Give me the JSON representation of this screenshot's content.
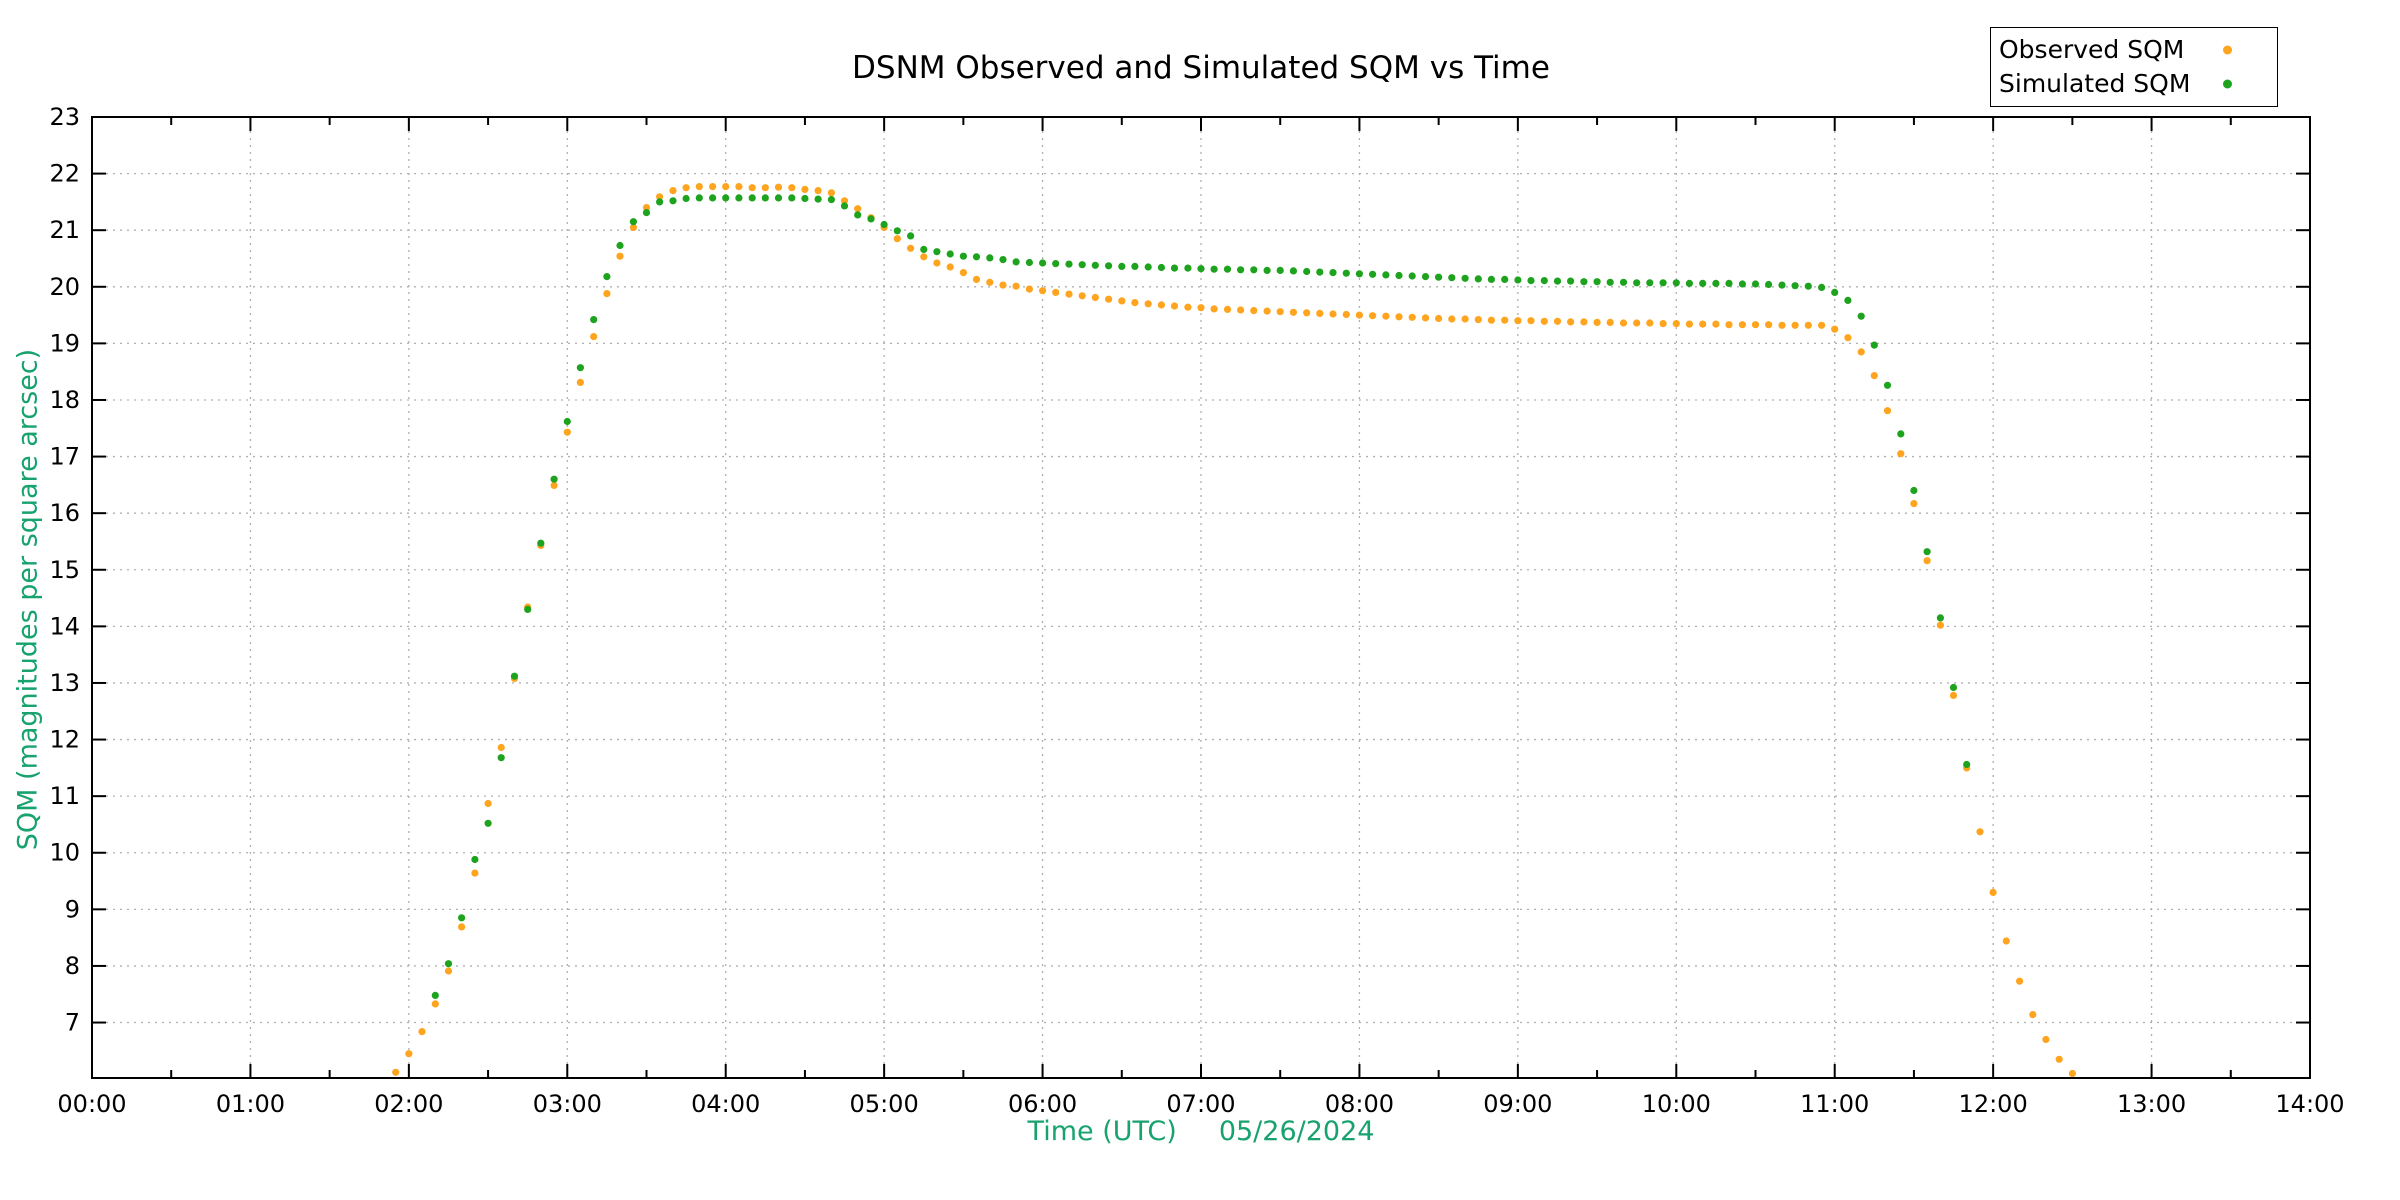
{
  "chart": {
    "title": "DSNM Observed and Simulated SQM vs Time",
    "x_axis": {
      "label": "Time (UTC)",
      "date": "05/26/2024",
      "tick_labels": [
        "00:00",
        "01:00",
        "02:00",
        "03:00",
        "04:00",
        "05:00",
        "06:00",
        "07:00",
        "08:00",
        "09:00",
        "10:00",
        "11:00",
        "12:00",
        "13:00",
        "14:00"
      ],
      "minor_tick_interval_minutes": 30
    },
    "y_axis": {
      "label": "SQM (magnitudes per square arcsec)",
      "tick_labels": [
        "7",
        "8",
        "9",
        "10",
        "11",
        "12",
        "13",
        "14",
        "15",
        "16",
        "17",
        "18",
        "19",
        "20",
        "21",
        "22",
        "23"
      ]
    },
    "legend": [
      {
        "label": "Observed SQM",
        "color": "#ffa41e"
      },
      {
        "label": "Simulated SQM",
        "color": "#1ea31e"
      }
    ],
    "colors": {
      "axis_title": "#17a26e",
      "grid": "#b0b0b0",
      "border": "#000000",
      "background": "#ffffff",
      "tick_text": "#000000"
    }
  },
  "chart_data": {
    "type": "scatter",
    "title": "DSNM Observed and Simulated SQM vs Time",
    "xlabel": "Time (UTC)   05/26/2024",
    "ylabel": "SQM (magnitudes per square arcsec)",
    "x_unit": "decimal_hours_utc",
    "xlim": [
      0,
      14
    ],
    "ylim": [
      6.02,
      23.0
    ],
    "x_major_tick_hours": 1,
    "x_minor_tick_hours": 0.5,
    "y_major_tick": 1,
    "grid": true,
    "grid_style": "dotted",
    "legend_position": "top-right-above-plot",
    "marker": "filled-circle",
    "series": [
      {
        "name": "Observed SQM",
        "color": "#ffa41e",
        "points": [
          [
            1.917,
            6.12
          ],
          [
            2.0,
            6.45
          ],
          [
            2.083,
            6.84
          ],
          [
            2.167,
            7.33
          ],
          [
            2.25,
            7.91
          ],
          [
            2.333,
            8.69
          ],
          [
            2.417,
            9.64
          ],
          [
            2.5,
            10.87
          ],
          [
            2.583,
            11.86
          ],
          [
            2.667,
            13.08
          ],
          [
            2.75,
            14.34
          ],
          [
            2.833,
            15.43
          ],
          [
            2.917,
            16.49
          ],
          [
            3.0,
            17.43
          ],
          [
            3.083,
            18.31
          ],
          [
            3.167,
            19.12
          ],
          [
            3.25,
            19.88
          ],
          [
            3.333,
            20.54
          ],
          [
            3.417,
            21.05
          ],
          [
            3.5,
            21.4
          ],
          [
            3.583,
            21.59
          ],
          [
            3.667,
            21.7
          ],
          [
            3.75,
            21.75
          ],
          [
            3.833,
            21.77
          ],
          [
            3.917,
            21.77
          ],
          [
            4.0,
            21.77
          ],
          [
            4.083,
            21.77
          ],
          [
            4.167,
            21.75
          ],
          [
            4.25,
            21.75
          ],
          [
            4.333,
            21.76
          ],
          [
            4.417,
            21.75
          ],
          [
            4.5,
            21.72
          ],
          [
            4.583,
            21.7
          ],
          [
            4.667,
            21.66
          ],
          [
            4.75,
            21.52
          ],
          [
            4.833,
            21.38
          ],
          [
            4.917,
            21.22
          ],
          [
            5.0,
            21.05
          ],
          [
            5.083,
            20.85
          ],
          [
            5.167,
            20.68
          ],
          [
            5.25,
            20.53
          ],
          [
            5.333,
            20.42
          ],
          [
            5.417,
            20.35
          ],
          [
            5.5,
            20.25
          ],
          [
            5.583,
            20.13
          ],
          [
            5.667,
            20.08
          ],
          [
            5.75,
            20.03
          ],
          [
            5.833,
            20.01
          ],
          [
            5.917,
            19.96
          ],
          [
            6.0,
            19.93
          ],
          [
            6.083,
            19.9
          ],
          [
            6.167,
            19.87
          ],
          [
            6.25,
            19.84
          ],
          [
            6.333,
            19.81
          ],
          [
            6.417,
            19.78
          ],
          [
            6.5,
            19.75
          ],
          [
            6.583,
            19.72
          ],
          [
            6.667,
            19.7
          ],
          [
            6.75,
            19.68
          ],
          [
            6.833,
            19.66
          ],
          [
            6.917,
            19.64
          ],
          [
            7.0,
            19.63
          ],
          [
            7.083,
            19.61
          ],
          [
            7.167,
            19.6
          ],
          [
            7.25,
            19.59
          ],
          [
            7.333,
            19.58
          ],
          [
            7.417,
            19.57
          ],
          [
            7.5,
            19.56
          ],
          [
            7.583,
            19.55
          ],
          [
            7.667,
            19.54
          ],
          [
            7.75,
            19.53
          ],
          [
            7.833,
            19.52
          ],
          [
            7.917,
            19.51
          ],
          [
            8.0,
            19.5
          ],
          [
            8.083,
            19.49
          ],
          [
            8.167,
            19.48
          ],
          [
            8.25,
            19.47
          ],
          [
            8.333,
            19.46
          ],
          [
            8.417,
            19.45
          ],
          [
            8.5,
            19.44
          ],
          [
            8.583,
            19.43
          ],
          [
            8.667,
            19.43
          ],
          [
            8.75,
            19.42
          ],
          [
            8.833,
            19.41
          ],
          [
            8.917,
            19.41
          ],
          [
            9.0,
            19.4
          ],
          [
            9.083,
            19.4
          ],
          [
            9.167,
            19.39
          ],
          [
            9.25,
            19.39
          ],
          [
            9.333,
            19.38
          ],
          [
            9.417,
            19.38
          ],
          [
            9.5,
            19.37
          ],
          [
            9.583,
            19.37
          ],
          [
            9.667,
            19.36
          ],
          [
            9.75,
            19.36
          ],
          [
            9.833,
            19.36
          ],
          [
            9.917,
            19.35
          ],
          [
            10.0,
            19.35
          ],
          [
            10.083,
            19.34
          ],
          [
            10.167,
            19.34
          ],
          [
            10.25,
            19.34
          ],
          [
            10.333,
            19.33
          ],
          [
            10.417,
            19.33
          ],
          [
            10.5,
            19.33
          ],
          [
            10.583,
            19.33
          ],
          [
            10.667,
            19.32
          ],
          [
            10.75,
            19.32
          ],
          [
            10.833,
            19.32
          ],
          [
            10.917,
            19.32
          ],
          [
            11.0,
            19.25
          ],
          [
            11.083,
            19.1
          ],
          [
            11.167,
            18.85
          ],
          [
            11.25,
            18.43
          ],
          [
            11.333,
            17.81
          ],
          [
            11.417,
            17.05
          ],
          [
            11.5,
            16.17
          ],
          [
            11.583,
            15.16
          ],
          [
            11.667,
            14.02
          ],
          [
            11.75,
            12.78
          ],
          [
            11.833,
            11.5
          ],
          [
            11.917,
            10.37
          ],
          [
            12.0,
            9.3
          ],
          [
            12.083,
            8.44
          ],
          [
            12.167,
            7.73
          ],
          [
            12.25,
            7.14
          ],
          [
            12.333,
            6.7
          ],
          [
            12.417,
            6.35
          ],
          [
            12.5,
            6.1
          ]
        ]
      },
      {
        "name": "Simulated SQM",
        "color": "#1ea31e",
        "points": [
          [
            2.167,
            7.48
          ],
          [
            2.25,
            8.04
          ],
          [
            2.333,
            8.85
          ],
          [
            2.417,
            9.88
          ],
          [
            2.5,
            10.52
          ],
          [
            2.583,
            11.68
          ],
          [
            2.667,
            13.12
          ],
          [
            2.75,
            14.3
          ],
          [
            2.833,
            15.47
          ],
          [
            2.917,
            16.6
          ],
          [
            3.0,
            17.62
          ],
          [
            3.083,
            18.57
          ],
          [
            3.167,
            19.42
          ],
          [
            3.25,
            20.18
          ],
          [
            3.333,
            20.73
          ],
          [
            3.417,
            21.15
          ],
          [
            3.5,
            21.31
          ],
          [
            3.583,
            21.5
          ],
          [
            3.667,
            21.52
          ],
          [
            3.75,
            21.56
          ],
          [
            3.833,
            21.57
          ],
          [
            3.917,
            21.57
          ],
          [
            4.0,
            21.57
          ],
          [
            4.083,
            21.57
          ],
          [
            4.167,
            21.57
          ],
          [
            4.25,
            21.57
          ],
          [
            4.333,
            21.57
          ],
          [
            4.417,
            21.57
          ],
          [
            4.5,
            21.56
          ],
          [
            4.583,
            21.55
          ],
          [
            4.667,
            21.54
          ],
          [
            4.75,
            21.43
          ],
          [
            4.833,
            21.27
          ],
          [
            4.917,
            21.2
          ],
          [
            5.0,
            21.1
          ],
          [
            5.083,
            20.99
          ],
          [
            5.167,
            20.9
          ],
          [
            5.25,
            20.66
          ],
          [
            5.333,
            20.62
          ],
          [
            5.417,
            20.58
          ],
          [
            5.5,
            20.54
          ],
          [
            5.583,
            20.53
          ],
          [
            5.667,
            20.51
          ],
          [
            5.75,
            20.48
          ],
          [
            5.833,
            20.44
          ],
          [
            5.917,
            20.43
          ],
          [
            6.0,
            20.42
          ],
          [
            6.083,
            20.41
          ],
          [
            6.167,
            20.4
          ],
          [
            6.25,
            20.39
          ],
          [
            6.333,
            20.38
          ],
          [
            6.417,
            20.37
          ],
          [
            6.5,
            20.36
          ],
          [
            6.583,
            20.36
          ],
          [
            6.667,
            20.35
          ],
          [
            6.75,
            20.34
          ],
          [
            6.833,
            20.33
          ],
          [
            6.917,
            20.33
          ],
          [
            7.0,
            20.32
          ],
          [
            7.083,
            20.31
          ],
          [
            7.167,
            20.31
          ],
          [
            7.25,
            20.3
          ],
          [
            7.333,
            20.3
          ],
          [
            7.417,
            20.29
          ],
          [
            7.5,
            20.29
          ],
          [
            7.583,
            20.28
          ],
          [
            7.667,
            20.27
          ],
          [
            7.75,
            20.26
          ],
          [
            7.833,
            20.25
          ],
          [
            7.917,
            20.24
          ],
          [
            8.0,
            20.23
          ],
          [
            8.083,
            20.22
          ],
          [
            8.167,
            20.21
          ],
          [
            8.25,
            20.2
          ],
          [
            8.333,
            20.19
          ],
          [
            8.417,
            20.18
          ],
          [
            8.5,
            20.17
          ],
          [
            8.583,
            20.16
          ],
          [
            8.667,
            20.15
          ],
          [
            8.75,
            20.14
          ],
          [
            8.833,
            20.13
          ],
          [
            8.917,
            20.13
          ],
          [
            9.0,
            20.12
          ],
          [
            9.083,
            20.11
          ],
          [
            9.167,
            20.11
          ],
          [
            9.25,
            20.1
          ],
          [
            9.333,
            20.1
          ],
          [
            9.417,
            20.09
          ],
          [
            9.5,
            20.09
          ],
          [
            9.583,
            20.08
          ],
          [
            9.667,
            20.08
          ],
          [
            9.75,
            20.07
          ],
          [
            9.833,
            20.07
          ],
          [
            9.917,
            20.07
          ],
          [
            10.0,
            20.07
          ],
          [
            10.083,
            20.06
          ],
          [
            10.167,
            20.06
          ],
          [
            10.25,
            20.06
          ],
          [
            10.333,
            20.06
          ],
          [
            10.417,
            20.05
          ],
          [
            10.5,
            20.05
          ],
          [
            10.583,
            20.04
          ],
          [
            10.667,
            20.03
          ],
          [
            10.75,
            20.02
          ],
          [
            10.833,
            20.01
          ],
          [
            10.917,
            19.99
          ],
          [
            11.0,
            19.9
          ],
          [
            11.083,
            19.76
          ],
          [
            11.167,
            19.48
          ],
          [
            11.25,
            18.97
          ],
          [
            11.333,
            18.26
          ],
          [
            11.417,
            17.4
          ],
          [
            11.5,
            16.4
          ],
          [
            11.583,
            15.32
          ],
          [
            11.667,
            14.15
          ],
          [
            11.75,
            12.92
          ],
          [
            11.833,
            11.56
          ]
        ]
      }
    ]
  }
}
